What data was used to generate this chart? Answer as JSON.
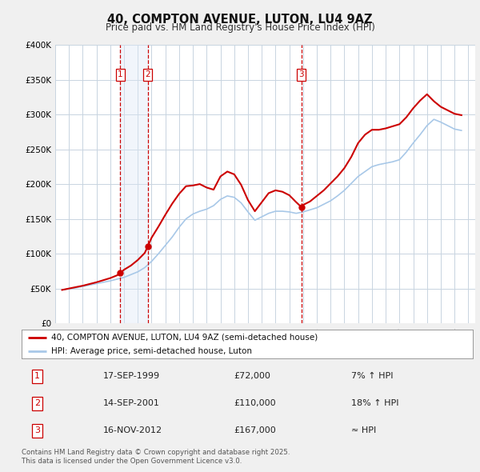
{
  "title": "40, COMPTON AVENUE, LUTON, LU4 9AZ",
  "subtitle": "Price paid vs. HM Land Registry's House Price Index (HPI)",
  "bg_color": "#f0f0f0",
  "plot_bg_color": "#ffffff",
  "grid_color": "#c8d4e0",
  "hpi_color": "#a8c8e8",
  "price_color": "#cc0000",
  "ylim": [
    0,
    400000
  ],
  "yticks": [
    0,
    50000,
    100000,
    150000,
    200000,
    250000,
    300000,
    350000,
    400000
  ],
  "ytick_labels": [
    "£0",
    "£50K",
    "£100K",
    "£150K",
    "£200K",
    "£250K",
    "£300K",
    "£350K",
    "£400K"
  ],
  "sale1_year": 1999.714,
  "sale1_price": 72000,
  "sale1_label": "1",
  "sale2_year": 2001.714,
  "sale2_price": 110000,
  "sale2_label": "2",
  "sale3_year": 2012.877,
  "sale3_price": 167000,
  "sale3_label": "3",
  "shade_color": "#dce8f5",
  "legend_label1": "40, COMPTON AVENUE, LUTON, LU4 9AZ (semi-detached house)",
  "legend_label2": "HPI: Average price, semi-detached house, Luton",
  "table_rows": [
    [
      "1",
      "17-SEP-1999",
      "£72,000",
      "7% ↑ HPI"
    ],
    [
      "2",
      "14-SEP-2001",
      "£110,000",
      "18% ↑ HPI"
    ],
    [
      "3",
      "16-NOV-2012",
      "£167,000",
      "≈ HPI"
    ]
  ],
  "footer": "Contains HM Land Registry data © Crown copyright and database right 2025.\nThis data is licensed under the Open Government Licence v3.0.",
  "hpi_data": {
    "years": [
      1995.5,
      1996.0,
      1996.5,
      1997.0,
      1997.5,
      1998.0,
      1998.5,
      1999.0,
      1999.5,
      2000.0,
      2000.5,
      2001.0,
      2001.5,
      2002.0,
      2002.5,
      2003.0,
      2003.5,
      2004.0,
      2004.5,
      2005.0,
      2005.5,
      2006.0,
      2006.5,
      2007.0,
      2007.5,
      2008.0,
      2008.5,
      2009.0,
      2009.5,
      2010.0,
      2010.5,
      2011.0,
      2011.5,
      2012.0,
      2012.5,
      2013.0,
      2013.5,
      2014.0,
      2014.5,
      2015.0,
      2015.5,
      2016.0,
      2016.5,
      2017.0,
      2017.5,
      2018.0,
      2018.5,
      2019.0,
      2019.5,
      2020.0,
      2020.5,
      2021.0,
      2021.5,
      2022.0,
      2022.5,
      2023.0,
      2023.5,
      2024.0,
      2024.5
    ],
    "values": [
      48000,
      49500,
      51000,
      53000,
      55000,
      57000,
      59000,
      61000,
      63500,
      66000,
      70000,
      74000,
      80000,
      89000,
      100000,
      112000,
      124000,
      138000,
      150000,
      157000,
      161000,
      164000,
      169000,
      178000,
      183000,
      181000,
      173000,
      160000,
      148000,
      153000,
      158000,
      161000,
      161000,
      160000,
      158000,
      160000,
      163000,
      166000,
      171000,
      176000,
      183000,
      191000,
      201000,
      211000,
      218000,
      225000,
      228000,
      230000,
      232000,
      235000,
      246000,
      259000,
      271000,
      284000,
      293000,
      289000,
      284000,
      279000,
      277000
    ]
  },
  "price_data": {
    "years": [
      1995.5,
      1996.0,
      1996.5,
      1997.0,
      1997.5,
      1998.0,
      1998.5,
      1999.0,
      1999.5,
      1999.714,
      2000.0,
      2000.5,
      2001.0,
      2001.5,
      2001.714,
      2002.0,
      2002.5,
      2003.0,
      2003.5,
      2004.0,
      2004.5,
      2005.0,
      2005.5,
      2006.0,
      2006.5,
      2007.0,
      2007.5,
      2008.0,
      2008.5,
      2009.0,
      2009.5,
      2010.0,
      2010.5,
      2011.0,
      2011.5,
      2012.0,
      2012.5,
      2012.877,
      2013.0,
      2013.5,
      2014.0,
      2014.5,
      2015.0,
      2015.5,
      2016.0,
      2016.5,
      2017.0,
      2017.5,
      2018.0,
      2018.5,
      2019.0,
      2019.5,
      2020.0,
      2020.5,
      2021.0,
      2021.5,
      2022.0,
      2022.5,
      2023.0,
      2023.5,
      2024.0,
      2024.5
    ],
    "values": [
      48000,
      50000,
      52000,
      54000,
      56500,
      59000,
      62000,
      65000,
      69000,
      72000,
      77000,
      83000,
      91000,
      101000,
      110000,
      123000,
      139000,
      156000,
      172000,
      186000,
      197000,
      198000,
      200000,
      195000,
      192000,
      211000,
      218000,
      214000,
      199000,
      177000,
      161000,
      174000,
      187000,
      191000,
      189000,
      184000,
      174000,
      167000,
      170000,
      175000,
      183000,
      191000,
      201000,
      211000,
      223000,
      239000,
      259000,
      271000,
      278000,
      278000,
      280000,
      283000,
      286000,
      296000,
      309000,
      320000,
      329000,
      319000,
      311000,
      306000,
      301000,
      299000
    ]
  }
}
